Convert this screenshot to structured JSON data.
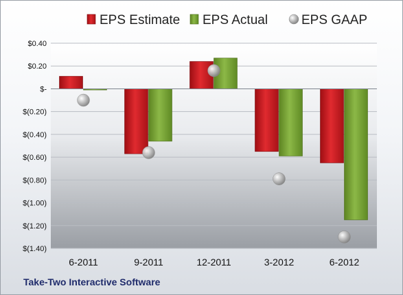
{
  "company": "Take-Two Interactive Software",
  "chart_data": {
    "type": "bar",
    "categories": [
      "6-2011",
      "9-2011",
      "12-2011",
      "3-2012",
      "6-2012"
    ],
    "series": [
      {
        "name": "EPS Estimate",
        "kind": "bar",
        "color": "#c8161d",
        "values": [
          0.11,
          -0.57,
          0.24,
          -0.55,
          -0.65
        ]
      },
      {
        "name": "EPS Actual",
        "kind": "bar",
        "color": "#78a22f",
        "values": [
          -0.01,
          -0.46,
          0.27,
          -0.59,
          -1.15
        ]
      },
      {
        "name": "EPS GAAP",
        "kind": "marker",
        "color": "#a9a9a9",
        "values": [
          -0.1,
          -0.56,
          0.16,
          -0.79,
          -1.3
        ]
      }
    ],
    "ylim": [
      -1.4,
      0.4
    ],
    "yticks": [
      0.4,
      0.2,
      0,
      -0.2,
      -0.4,
      -0.6,
      -0.8,
      -1.0,
      -1.2,
      -1.4
    ],
    "ytick_labels": [
      "$0.40",
      "$0.20",
      "$-",
      "$(0.20)",
      "$(0.40)",
      "$(0.60)",
      "$(0.80)",
      "$(1.00)",
      "$(1.20)",
      "$(1.40)"
    ],
    "grid": true,
    "legend_position": "top"
  }
}
